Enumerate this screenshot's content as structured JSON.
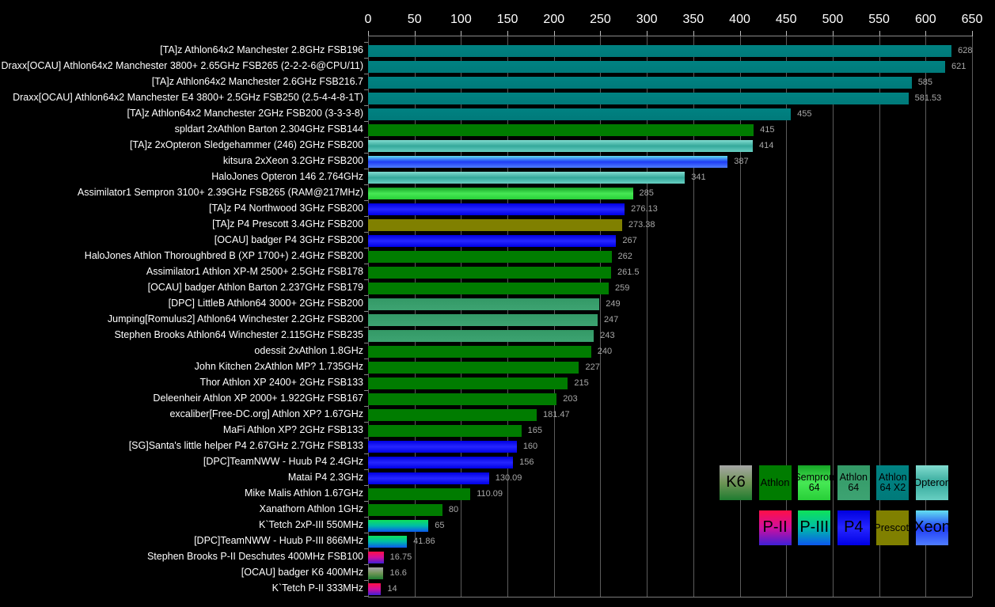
{
  "chart_data": {
    "type": "bar",
    "orientation": "horizontal",
    "title": "",
    "xlabel": "",
    "ylabel": "",
    "xlim": [
      0,
      650
    ],
    "x_ticks": [
      0,
      50,
      100,
      150,
      200,
      250,
      300,
      350,
      400,
      450,
      500,
      550,
      600,
      650
    ],
    "grid": true,
    "background": "#000000",
    "gridline_color": "#5c5c5c",
    "value_label_color": "#a8a8a8",
    "axis_text_color": "#ffffff",
    "bars": [
      {
        "label": "[TA]z Athlon64x2 Manchester 2.8GHz FSB196",
        "value": 628,
        "value_label": "628",
        "category": "athlon64x2"
      },
      {
        "label": "Draxx[OCAU] Athlon64x2 Manchester 3800+ 2.65GHz FSB265 (2-2-2-6@CPU/11)",
        "value": 621,
        "value_label": "621",
        "category": "athlon64x2"
      },
      {
        "label": "[TA]z Athlon64x2 Manchester 2.6GHz FSB216.7",
        "value": 585,
        "value_label": "585",
        "category": "athlon64x2"
      },
      {
        "label": "Draxx[OCAU] Athlon64x2 Manchester E4 3800+ 2.5GHz FSB250 (2.5-4-4-8-1T)",
        "value": 581.53,
        "value_label": "581.53",
        "category": "athlon64x2"
      },
      {
        "label": "[TA]z Athlon64x2 Manchester 2GHz FSB200 (3-3-3-8)",
        "value": 455,
        "value_label": "455",
        "category": "athlon64x2"
      },
      {
        "label": "spldart 2xAthlon Barton 2.304GHz FSB144",
        "value": 415,
        "value_label": "415",
        "category": "athlon"
      },
      {
        "label": "[TA]z 2xOpteron Sledgehammer (246) 2GHz FSB200",
        "value": 414,
        "value_label": "414",
        "category": "opteron"
      },
      {
        "label": "kitsura 2xXeon 3.2GHz FSB200",
        "value": 387,
        "value_label": "387",
        "category": "xeon"
      },
      {
        "label": "HaloJones Opteron 146 2.764GHz",
        "value": 341,
        "value_label": "341",
        "category": "opteron"
      },
      {
        "label": "Assimilator1 Sempron 3100+ 2.39GHz FSB265 (RAM@217MHz)",
        "value": 285,
        "value_label": "285",
        "category": "sempron64"
      },
      {
        "label": "[TA]z P4 Northwood 3GHz FSB200",
        "value": 276.13,
        "value_label": "276.13",
        "category": "p4"
      },
      {
        "label": "[TA]z P4 Prescott 3.4GHz FSB200",
        "value": 273.38,
        "value_label": "273.38",
        "category": "prescott"
      },
      {
        "label": "[OCAU] badger P4 3GHz FSB200",
        "value": 267,
        "value_label": "267",
        "category": "p4"
      },
      {
        "label": "HaloJones Athlon Thoroughbred B (XP 1700+) 2.4GHz FSB200",
        "value": 262,
        "value_label": "262",
        "category": "athlon"
      },
      {
        "label": "Assimilator1 Athlon XP-M 2500+ 2.5GHz FSB178",
        "value": 261.5,
        "value_label": "261.5",
        "category": "athlon"
      },
      {
        "label": "[OCAU] badger Athlon Barton 2.237GHz FSB179",
        "value": 259,
        "value_label": "259",
        "category": "athlon"
      },
      {
        "label": "[DPC] LittleB Athlon64 3000+ 2GHz FSB200",
        "value": 249,
        "value_label": "249",
        "category": "athlon64"
      },
      {
        "label": "Jumping[Romulus2] Athlon64 Winchester 2.2GHz FSB200",
        "value": 247,
        "value_label": "247",
        "category": "athlon64"
      },
      {
        "label": "Stephen Brooks Athlon64 Winchester 2.115GHz FSB235",
        "value": 243,
        "value_label": "243",
        "category": "athlon64"
      },
      {
        "label": "odessit 2xAthlon 1.8GHz",
        "value": 240,
        "value_label": "240",
        "category": "athlon"
      },
      {
        "label": "John Kitchen 2xAthlon MP? 1.735GHz",
        "value": 227,
        "value_label": "227",
        "category": "athlon"
      },
      {
        "label": "Thor Athlon XP 2400+ 2GHz FSB133",
        "value": 215,
        "value_label": "215",
        "category": "athlon"
      },
      {
        "label": "Deleenheir Athlon XP 2000+ 1.922GHz FSB167",
        "value": 203,
        "value_label": "203",
        "category": "athlon"
      },
      {
        "label": "excaliber[Free-DC.org] Athlon XP? 1.67GHz",
        "value": 181.47,
        "value_label": "181.47",
        "category": "athlon"
      },
      {
        "label": "MaFi Athlon XP? 2GHz FSB133",
        "value": 165,
        "value_label": "165",
        "category": "athlon"
      },
      {
        "label": "[SG]Santa's little helper P4 2.67GHz 2.7GHz FSB133",
        "value": 160,
        "value_label": "160",
        "category": "p4"
      },
      {
        "label": "[DPC]TeamNWW - Huub P4 2.4GHz",
        "value": 156,
        "value_label": "156",
        "category": "p4"
      },
      {
        "label": "Matai P4 2.3GHz",
        "value": 130.09,
        "value_label": "130.09",
        "category": "p4"
      },
      {
        "label": "Mike Malis Athlon 1.67GHz",
        "value": 110.09,
        "value_label": "110.09",
        "category": "athlon"
      },
      {
        "label": "Xanathorn Athlon 1GHz",
        "value": 80,
        "value_label": "80",
        "category": "athlon"
      },
      {
        "label": "K`Tetch 2xP-III 550MHz",
        "value": 65,
        "value_label": "65",
        "category": "p3"
      },
      {
        "label": "[DPC]TeamNWW - Huub P-III 866MHz",
        "value": 41.86,
        "value_label": "41.86",
        "category": "p3"
      },
      {
        "label": "Stephen Brooks P-II Deschutes 400MHz FSB100",
        "value": 16.75,
        "value_label": "16.75",
        "category": "p2"
      },
      {
        "label": "[OCAU] badger K6 400MHz",
        "value": 16.6,
        "value_label": "16.6",
        "category": "k6"
      },
      {
        "label": "K`Tetch P-II 333MHz",
        "value": 14,
        "value_label": "14",
        "category": "p2"
      }
    ],
    "category_colors": {
      "k6": [
        "#a6a6a6",
        "#6f9556",
        "#1e7c30"
      ],
      "athlon": [
        "#007c00"
      ],
      "sempron64": [
        "#16a526",
        "#46e854",
        "#28cf38"
      ],
      "athlon64": [
        "#339966",
        "#3da372"
      ],
      "athlon64x2": [
        "#008282",
        "#007a7a"
      ],
      "opteron": [
        "#82dcd0",
        "#35a99b",
        "#68cfc2"
      ],
      "p2": [
        "#ff0f47",
        "#cf0f9f",
        "#3f1fd7"
      ],
      "p3": [
        "#0ee25a",
        "#00bca8",
        "#0b57ee"
      ],
      "p4": [
        "#0000e0",
        "#2626ff",
        "#0000e6"
      ],
      "prescott": [
        "#808000"
      ],
      "xeon": [
        "#62dff0",
        "#1f3cf5",
        "#4f7dff"
      ]
    }
  },
  "legend": {
    "items": [
      {
        "label": "K6",
        "lines": [
          "K6"
        ],
        "category": "k6",
        "row": 0,
        "col": 0
      },
      {
        "label": "Athlon",
        "lines": [
          "Athlon"
        ],
        "category": "athlon",
        "row": 0,
        "col": 1
      },
      {
        "label": "Sempron 64",
        "lines": [
          "Sempron",
          "64"
        ],
        "category": "sempron64",
        "row": 0,
        "col": 2
      },
      {
        "label": "Athlon 64",
        "lines": [
          "Athlon",
          "64"
        ],
        "category": "athlon64",
        "row": 0,
        "col": 3
      },
      {
        "label": "Athlon 64 X2",
        "lines": [
          "Athlon",
          "64 X2"
        ],
        "category": "athlon64x2",
        "row": 0,
        "col": 4
      },
      {
        "label": "Opteron",
        "lines": [
          "Opteron"
        ],
        "category": "opteron",
        "row": 0,
        "col": 5
      },
      {
        "label": "P-II",
        "lines": [
          "P-II"
        ],
        "category": "p2",
        "row": 1,
        "col": 1
      },
      {
        "label": "P-III",
        "lines": [
          "P-III"
        ],
        "category": "p3",
        "row": 1,
        "col": 2
      },
      {
        "label": "P4",
        "lines": [
          "P4"
        ],
        "category": "p4",
        "row": 1,
        "col": 3
      },
      {
        "label": "Prescott",
        "lines": [
          "Prescott"
        ],
        "category": "prescott",
        "row": 1,
        "col": 4
      },
      {
        "label": "Xeon",
        "lines": [
          "Xeon"
        ],
        "category": "xeon",
        "row": 1,
        "col": 5
      }
    ]
  }
}
